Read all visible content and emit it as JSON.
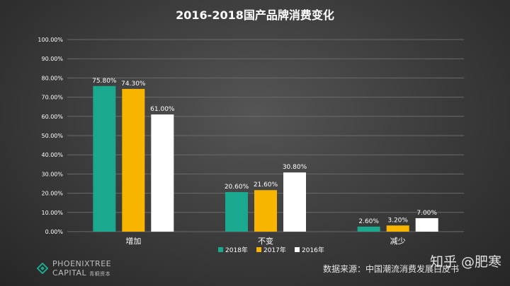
{
  "chart_data": {
    "type": "bar",
    "title": "2016-2018国产品牌消费变化",
    "categories": [
      "增加",
      "不变",
      "减少"
    ],
    "series": [
      {
        "name": "2018年",
        "color": "#1aa88f",
        "values": [
          75.8,
          20.6,
          2.6
        ],
        "labels": [
          "75.80%",
          "20.60%",
          "2.60%"
        ]
      },
      {
        "name": "2017年",
        "color": "#f7b500",
        "values": [
          74.3,
          21.6,
          3.2
        ],
        "labels": [
          "74.30%",
          "21.60%",
          "3.20%"
        ]
      },
      {
        "name": "2016年",
        "color": "#ffffff",
        "values": [
          61.0,
          30.8,
          7.0
        ],
        "labels": [
          "61.00%",
          "30.80%",
          "7.00%"
        ]
      }
    ],
    "ylim": [
      0,
      100
    ],
    "yticks": [
      "0.00%",
      "10.00%",
      "20.00%",
      "30.00%",
      "40.00%",
      "50.00%",
      "60.00%",
      "70.00%",
      "80.00%",
      "90.00%",
      "100.00%"
    ],
    "grid": true,
    "legend_position": "bottom"
  },
  "footer": {
    "logo_line1": "PHOENIXTREE",
    "logo_line2": "CAPITAL",
    "logo_cn": "青桐资本",
    "source": "数据来源：中国潮流消费发展白皮书",
    "watermark": "知乎 @肥寒"
  },
  "colors": {
    "grid": "#6a6a6a",
    "axis_text": "#ffffff",
    "logo_green": "#1aa88f"
  }
}
